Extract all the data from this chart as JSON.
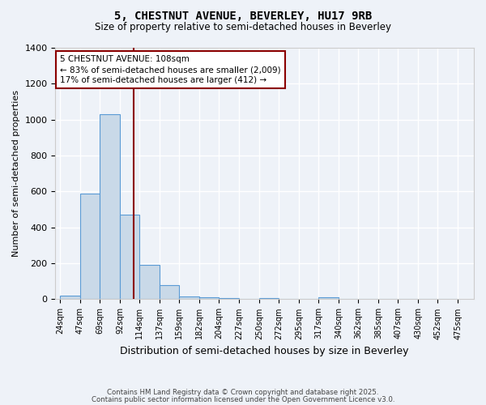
{
  "title_line1": "5, CHESTNUT AVENUE, BEVERLEY, HU17 9RB",
  "title_line2": "Size of property relative to semi-detached houses in Beverley",
  "xlabel": "Distribution of semi-detached houses by size in Beverley",
  "ylabel": "Number of semi-detached properties",
  "bin_labels": [
    "24sqm",
    "47sqm",
    "69sqm",
    "92sqm",
    "114sqm",
    "137sqm",
    "159sqm",
    "182sqm",
    "204sqm",
    "227sqm",
    "250sqm",
    "272sqm",
    "295sqm",
    "317sqm",
    "340sqm",
    "362sqm",
    "385sqm",
    "407sqm",
    "430sqm",
    "452sqm",
    "475sqm"
  ],
  "bin_edges": [
    24,
    47,
    69,
    92,
    114,
    137,
    159,
    182,
    204,
    227,
    250,
    272,
    295,
    317,
    340,
    362,
    385,
    407,
    430,
    452,
    475
  ],
  "bar_heights": [
    20,
    590,
    1030,
    470,
    190,
    80,
    15,
    10,
    5,
    0,
    5,
    0,
    0,
    10,
    0,
    0,
    0,
    0,
    0,
    0
  ],
  "bar_color": "#c9d9e8",
  "bar_edge_color": "#5b9bd5",
  "property_size": 108,
  "vline_color": "#8b0000",
  "annotation_line1": "5 CHESTNUT AVENUE: 108sqm",
  "annotation_line2": "← 83% of semi-detached houses are smaller (2,009)",
  "annotation_line3": "17% of semi-detached houses are larger (412) →",
  "annotation_box_color": "#ffffff",
  "annotation_box_edge": "#8b0000",
  "ylim": [
    0,
    1400
  ],
  "yticks": [
    0,
    200,
    400,
    600,
    800,
    1000,
    1200,
    1400
  ],
  "background_color": "#eef2f8",
  "grid_color": "#ffffff",
  "footer_line1": "Contains HM Land Registry data © Crown copyright and database right 2025.",
  "footer_line2": "Contains public sector information licensed under the Open Government Licence v3.0."
}
